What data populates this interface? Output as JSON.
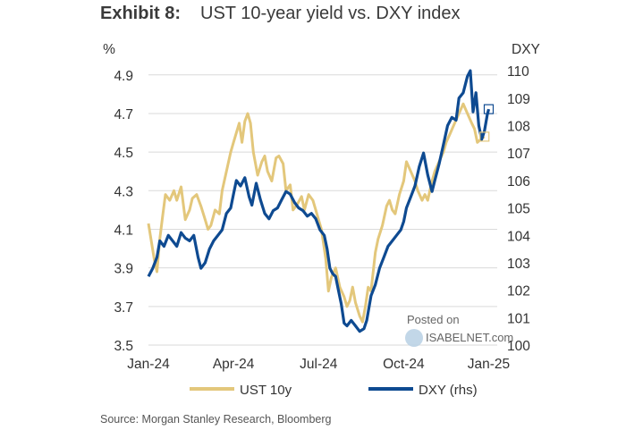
{
  "header": {
    "exhibit_label": "Exhibit 8:",
    "title": "UST 10-year yield vs. DXY index"
  },
  "source": "Source: Morgan Stanley Research, Bloomberg",
  "watermark": {
    "line1": "Posted on",
    "line2": "ISABELNET.com"
  },
  "colors": {
    "ust": "#E3C77B",
    "dxy": "#0E4A91",
    "grid": "#DADADA"
  },
  "chart_data": {
    "type": "line",
    "title": "UST 10-year yield vs. DXY index",
    "left_axis": {
      "unit_label": "%",
      "ticks": [
        "3.5",
        "3.7",
        "3.9",
        "4.1",
        "4.3",
        "4.5",
        "4.7",
        "4.9"
      ],
      "range": [
        3.5,
        4.95
      ]
    },
    "right_axis": {
      "unit_label": "DXY",
      "ticks": [
        "100",
        "101",
        "102",
        "103",
        "104",
        "105",
        "106",
        "107",
        "108",
        "109",
        "110"
      ],
      "range": [
        100,
        110.2
      ]
    },
    "x_axis": {
      "ticks": [
        "Jan-24",
        "Apr-24",
        "Jul-24",
        "Oct-24",
        "Jan-25"
      ],
      "range": [
        0,
        12.3
      ]
    },
    "legend": [
      "UST 10y",
      "DXY (rhs)"
    ],
    "series": [
      {
        "name": "UST 10y",
        "axis": "left",
        "points": [
          [
            0.0,
            4.13
          ],
          [
            0.2,
            3.95
          ],
          [
            0.3,
            3.88
          ],
          [
            0.4,
            4.05
          ],
          [
            0.5,
            4.17
          ],
          [
            0.6,
            4.28
          ],
          [
            0.75,
            4.25
          ],
          [
            0.9,
            4.3
          ],
          [
            1.0,
            4.25
          ],
          [
            1.15,
            4.32
          ],
          [
            1.3,
            4.15
          ],
          [
            1.45,
            4.2
          ],
          [
            1.55,
            4.26
          ],
          [
            1.7,
            4.28
          ],
          [
            1.85,
            4.22
          ],
          [
            2.0,
            4.15
          ],
          [
            2.1,
            4.1
          ],
          [
            2.2,
            4.12
          ],
          [
            2.35,
            4.2
          ],
          [
            2.5,
            4.18
          ],
          [
            2.6,
            4.3
          ],
          [
            2.75,
            4.4
          ],
          [
            2.9,
            4.5
          ],
          [
            3.0,
            4.55
          ],
          [
            3.1,
            4.6
          ],
          [
            3.2,
            4.65
          ],
          [
            3.3,
            4.55
          ],
          [
            3.4,
            4.66
          ],
          [
            3.5,
            4.7
          ],
          [
            3.6,
            4.65
          ],
          [
            3.7,
            4.5
          ],
          [
            3.85,
            4.38
          ],
          [
            4.0,
            4.45
          ],
          [
            4.1,
            4.48
          ],
          [
            4.2,
            4.4
          ],
          [
            4.35,
            4.35
          ],
          [
            4.5,
            4.47
          ],
          [
            4.6,
            4.48
          ],
          [
            4.75,
            4.44
          ],
          [
            4.85,
            4.3
          ],
          [
            5.0,
            4.33
          ],
          [
            5.1,
            4.2
          ],
          [
            5.25,
            4.23
          ],
          [
            5.4,
            4.27
          ],
          [
            5.5,
            4.2
          ],
          [
            5.65,
            4.28
          ],
          [
            5.8,
            4.25
          ],
          [
            5.9,
            4.2
          ],
          [
            6.0,
            4.15
          ],
          [
            6.1,
            4.1
          ],
          [
            6.25,
            3.95
          ],
          [
            6.35,
            3.78
          ],
          [
            6.45,
            3.85
          ],
          [
            6.6,
            3.9
          ],
          [
            6.75,
            3.8
          ],
          [
            6.9,
            3.75
          ],
          [
            7.0,
            3.7
          ],
          [
            7.1,
            3.73
          ],
          [
            7.2,
            3.8
          ],
          [
            7.3,
            3.72
          ],
          [
            7.45,
            3.65
          ],
          [
            7.55,
            3.62
          ],
          [
            7.65,
            3.7
          ],
          [
            7.75,
            3.8
          ],
          [
            7.85,
            3.78
          ],
          [
            8.0,
            3.98
          ],
          [
            8.1,
            4.05
          ],
          [
            8.25,
            4.12
          ],
          [
            8.4,
            4.22
          ],
          [
            8.5,
            4.25
          ],
          [
            8.6,
            4.2
          ],
          [
            8.7,
            4.18
          ],
          [
            8.85,
            4.28
          ],
          [
            9.0,
            4.35
          ],
          [
            9.1,
            4.45
          ],
          [
            9.25,
            4.4
          ],
          [
            9.4,
            4.35
          ],
          [
            9.5,
            4.3
          ],
          [
            9.65,
            4.25
          ],
          [
            9.75,
            4.28
          ],
          [
            9.85,
            4.25
          ],
          [
            10.0,
            4.35
          ],
          [
            10.1,
            4.4
          ],
          [
            10.25,
            4.45
          ],
          [
            10.4,
            4.5
          ],
          [
            10.5,
            4.55
          ],
          [
            10.65,
            4.6
          ],
          [
            10.8,
            4.65
          ],
          [
            10.95,
            4.7
          ],
          [
            11.1,
            4.75
          ],
          [
            11.25,
            4.7
          ],
          [
            11.4,
            4.65
          ],
          [
            11.5,
            4.62
          ],
          [
            11.6,
            4.55
          ],
          [
            11.75,
            4.57
          ],
          [
            11.85,
            4.58
          ]
        ]
      },
      {
        "name": "DXY (rhs)",
        "axis": "right",
        "points": [
          [
            0.0,
            102.5
          ],
          [
            0.15,
            102.8
          ],
          [
            0.3,
            103.2
          ],
          [
            0.4,
            103.8
          ],
          [
            0.55,
            103.6
          ],
          [
            0.7,
            104.0
          ],
          [
            0.85,
            103.8
          ],
          [
            1.0,
            103.6
          ],
          [
            1.15,
            104.1
          ],
          [
            1.3,
            103.9
          ],
          [
            1.45,
            103.8
          ],
          [
            1.6,
            104.0
          ],
          [
            1.75,
            103.2
          ],
          [
            1.85,
            102.8
          ],
          [
            2.0,
            103.0
          ],
          [
            2.15,
            103.5
          ],
          [
            2.3,
            103.8
          ],
          [
            2.45,
            104.0
          ],
          [
            2.6,
            104.2
          ],
          [
            2.75,
            104.8
          ],
          [
            2.9,
            105.0
          ],
          [
            3.0,
            105.5
          ],
          [
            3.1,
            106.0
          ],
          [
            3.25,
            105.8
          ],
          [
            3.4,
            106.1
          ],
          [
            3.55,
            105.4
          ],
          [
            3.65,
            105.1
          ],
          [
            3.8,
            105.9
          ],
          [
            3.95,
            105.3
          ],
          [
            4.1,
            104.8
          ],
          [
            4.25,
            104.6
          ],
          [
            4.4,
            104.9
          ],
          [
            4.55,
            105.0
          ],
          [
            4.7,
            105.3
          ],
          [
            4.85,
            105.6
          ],
          [
            5.0,
            105.5
          ],
          [
            5.15,
            105.2
          ],
          [
            5.3,
            105.0
          ],
          [
            5.45,
            104.9
          ],
          [
            5.6,
            104.7
          ],
          [
            5.75,
            104.8
          ],
          [
            5.9,
            104.6
          ],
          [
            6.05,
            104.2
          ],
          [
            6.2,
            104.0
          ],
          [
            6.3,
            103.5
          ],
          [
            6.4,
            102.8
          ],
          [
            6.5,
            102.6
          ],
          [
            6.6,
            102.5
          ],
          [
            6.7,
            102.0
          ],
          [
            6.8,
            101.5
          ],
          [
            6.9,
            100.8
          ],
          [
            7.0,
            100.7
          ],
          [
            7.15,
            100.9
          ],
          [
            7.3,
            100.7
          ],
          [
            7.45,
            100.5
          ],
          [
            7.6,
            100.6
          ],
          [
            7.7,
            100.9
          ],
          [
            7.85,
            101.8
          ],
          [
            8.0,
            102.2
          ],
          [
            8.15,
            102.8
          ],
          [
            8.3,
            103.2
          ],
          [
            8.45,
            103.6
          ],
          [
            8.6,
            103.8
          ],
          [
            8.75,
            104.0
          ],
          [
            8.9,
            104.2
          ],
          [
            9.0,
            104.5
          ],
          [
            9.1,
            105.0
          ],
          [
            9.25,
            105.4
          ],
          [
            9.4,
            105.8
          ],
          [
            9.55,
            106.5
          ],
          [
            9.7,
            107.0
          ],
          [
            9.85,
            106.2
          ],
          [
            10.0,
            105.6
          ],
          [
            10.1,
            106.0
          ],
          [
            10.25,
            106.6
          ],
          [
            10.4,
            107.3
          ],
          [
            10.55,
            108.0
          ],
          [
            10.7,
            108.3
          ],
          [
            10.85,
            108.2
          ],
          [
            10.95,
            109.0
          ],
          [
            11.1,
            109.2
          ],
          [
            11.25,
            109.8
          ],
          [
            11.35,
            110.0
          ],
          [
            11.45,
            108.5
          ],
          [
            11.55,
            109.2
          ],
          [
            11.65,
            108.0
          ],
          [
            11.75,
            107.5
          ],
          [
            11.85,
            107.8
          ],
          [
            11.95,
            108.4
          ],
          [
            12.0,
            108.6
          ]
        ]
      }
    ]
  }
}
